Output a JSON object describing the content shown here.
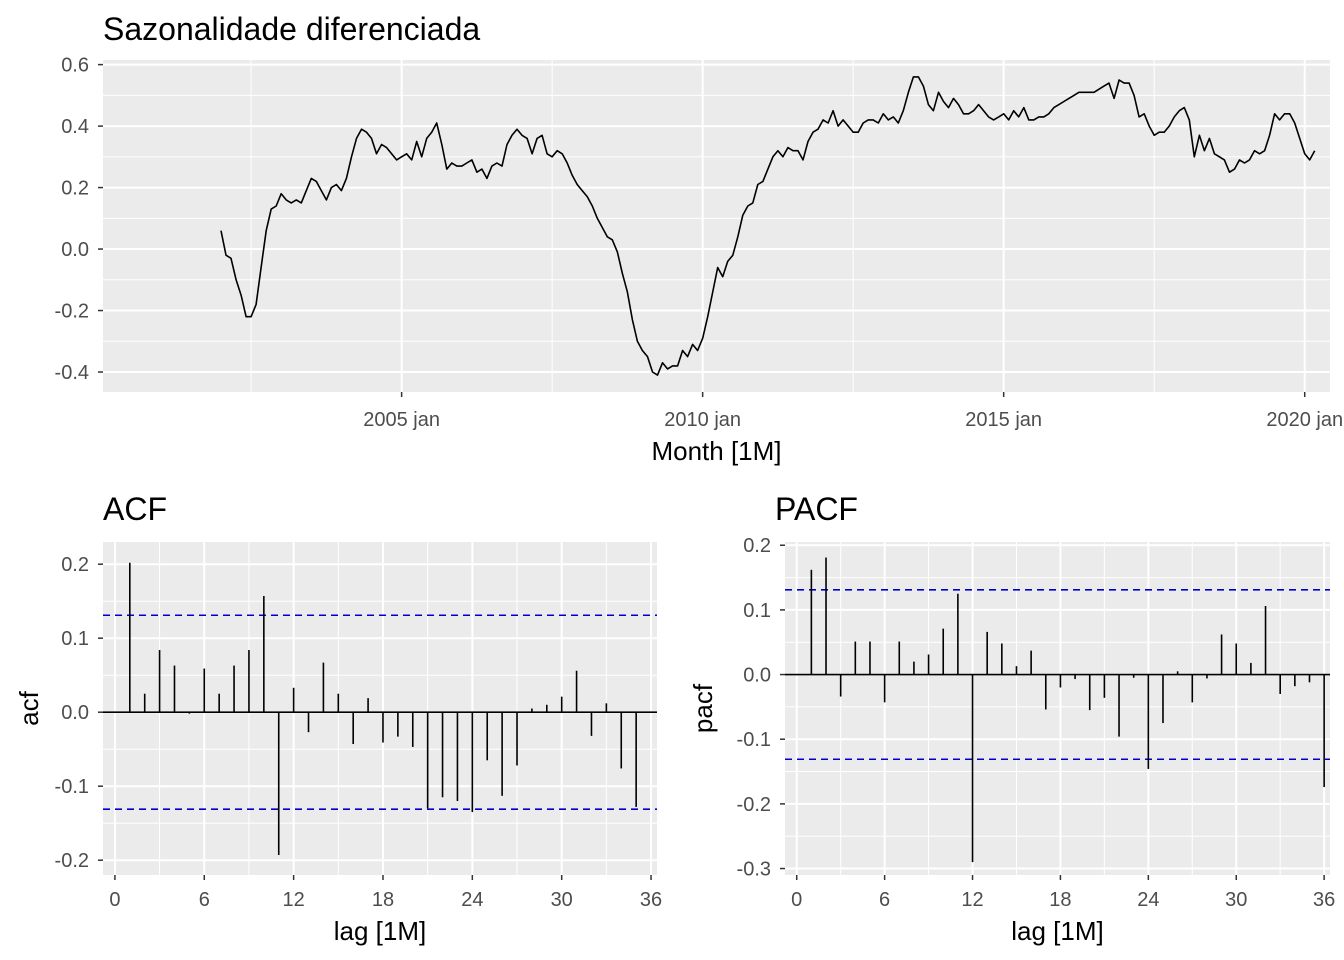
{
  "chart_data": [
    {
      "type": "line",
      "title": "Sazonalidade diferenciada",
      "xlabel": "Month [1M]",
      "ylabel": "",
      "xlim": [
        2000.04,
        2020.42
      ],
      "ylim": [
        -0.465,
        0.615
      ],
      "xticks": [
        {
          "value": 2005.0,
          "label": "2005 jan"
        },
        {
          "value": 2010.0,
          "label": "2010 jan"
        },
        {
          "value": 2015.0,
          "label": "2015 jan"
        },
        {
          "value": 2020.0,
          "label": "2020 jan"
        }
      ],
      "yticks": [
        {
          "value": 0.6,
          "label": "0.6"
        },
        {
          "value": 0.4,
          "label": "0.4"
        },
        {
          "value": 0.2,
          "label": "0.2"
        },
        {
          "value": 0.0,
          "label": "0.0"
        },
        {
          "value": -0.2,
          "label": "-0.2"
        },
        {
          "value": -0.4,
          "label": "-0.4"
        }
      ],
      "grid": true,
      "series": [
        {
          "x_start": 2002.0,
          "x_step": 0.0833333,
          "values": [
            0.06,
            -0.02,
            -0.03,
            -0.1,
            -0.15,
            -0.22,
            -0.22,
            -0.18,
            -0.06,
            0.06,
            0.13,
            0.14,
            0.18,
            0.16,
            0.15,
            0.16,
            0.15,
            0.19,
            0.23,
            0.22,
            0.19,
            0.16,
            0.2,
            0.21,
            0.19,
            0.23,
            0.3,
            0.36,
            0.39,
            0.38,
            0.36,
            0.31,
            0.34,
            0.33,
            0.31,
            0.29,
            0.3,
            0.31,
            0.29,
            0.35,
            0.3,
            0.36,
            0.38,
            0.41,
            0.34,
            0.26,
            0.28,
            0.27,
            0.27,
            0.28,
            0.29,
            0.25,
            0.26,
            0.23,
            0.27,
            0.28,
            0.27,
            0.34,
            0.37,
            0.39,
            0.37,
            0.36,
            0.31,
            0.36,
            0.37,
            0.31,
            0.3,
            0.32,
            0.31,
            0.28,
            0.24,
            0.21,
            0.19,
            0.17,
            0.14,
            0.1,
            0.07,
            0.04,
            0.03,
            -0.01,
            -0.08,
            -0.14,
            -0.23,
            -0.3,
            -0.33,
            -0.35,
            -0.4,
            -0.41,
            -0.37,
            -0.39,
            -0.38,
            -0.38,
            -0.33,
            -0.35,
            -0.31,
            -0.33,
            -0.29,
            -0.22,
            -0.14,
            -0.06,
            -0.09,
            -0.04,
            -0.02,
            0.04,
            0.11,
            0.14,
            0.15,
            0.21,
            0.22,
            0.26,
            0.3,
            0.32,
            0.3,
            0.33,
            0.32,
            0.32,
            0.29,
            0.35,
            0.38,
            0.39,
            0.42,
            0.41,
            0.45,
            0.4,
            0.42,
            0.4,
            0.38,
            0.38,
            0.41,
            0.42,
            0.42,
            0.41,
            0.44,
            0.42,
            0.43,
            0.41,
            0.45,
            0.51,
            0.56,
            0.56,
            0.53,
            0.47,
            0.45,
            0.51,
            0.48,
            0.46,
            0.49,
            0.47,
            0.44,
            0.44,
            0.45,
            0.47,
            0.45,
            0.43,
            0.42,
            0.43,
            0.44,
            0.42,
            0.45,
            0.43,
            0.46,
            0.42,
            0.42,
            0.43,
            0.43,
            0.44,
            0.46,
            0.47,
            0.48,
            0.49,
            0.5,
            0.51,
            0.51,
            0.51,
            0.51,
            0.52,
            0.53,
            0.54,
            0.49,
            0.55,
            0.54,
            0.54,
            0.5,
            0.43,
            0.44,
            0.4,
            0.37,
            0.38,
            0.38,
            0.4,
            0.43,
            0.45,
            0.46,
            0.42,
            0.3,
            0.37,
            0.32,
            0.36,
            0.31,
            0.3,
            0.29,
            0.25,
            0.26,
            0.29,
            0.28,
            0.29,
            0.32,
            0.31,
            0.32,
            0.37,
            0.44,
            0.42,
            0.44,
            0.44,
            0.41,
            0.36,
            0.31,
            0.29,
            0.32
          ]
        }
      ]
    },
    {
      "type": "bar",
      "title": "ACF",
      "xlabel": "lag [1M]",
      "ylabel": "acf",
      "xlim": [
        -0.8,
        36.4
      ],
      "ylim": [
        -0.22,
        0.23
      ],
      "xticks": [
        {
          "value": 0,
          "label": "0"
        },
        {
          "value": 6,
          "label": "6"
        },
        {
          "value": 12,
          "label": "12"
        },
        {
          "value": 18,
          "label": "18"
        },
        {
          "value": 24,
          "label": "24"
        },
        {
          "value": 30,
          "label": "30"
        },
        {
          "value": 36,
          "label": "36"
        }
      ],
      "yticks": [
        {
          "value": 0.2,
          "label": "0.2"
        },
        {
          "value": 0.1,
          "label": "0.1"
        },
        {
          "value": 0.0,
          "label": "0.0"
        },
        {
          "value": -0.1,
          "label": "-0.1"
        },
        {
          "value": -0.2,
          "label": "-0.2"
        }
      ],
      "confidence_bound": 0.131,
      "grid": true,
      "lags": [
        1,
        2,
        3,
        4,
        5,
        6,
        7,
        8,
        9,
        10,
        11,
        12,
        13,
        14,
        15,
        16,
        17,
        18,
        19,
        20,
        21,
        22,
        23,
        24,
        25,
        26,
        27,
        28,
        29,
        30,
        31,
        32,
        33,
        34,
        35
      ],
      "values": [
        0.202,
        0.025,
        0.084,
        0.063,
        -0.002,
        0.059,
        0.025,
        0.063,
        0.084,
        0.157,
        -0.193,
        0.033,
        -0.027,
        0.067,
        0.025,
        -0.043,
        0.019,
        -0.041,
        -0.033,
        -0.047,
        -0.13,
        -0.115,
        -0.12,
        -0.135,
        -0.065,
        -0.113,
        -0.072,
        0.005,
        0.01,
        0.021,
        0.056,
        -0.032,
        0.012,
        -0.076,
        -0.128
      ]
    },
    {
      "type": "bar",
      "title": "PACF",
      "xlabel": "lag [1M]",
      "ylabel": "pacf",
      "xlim": [
        -0.8,
        36.4
      ],
      "ylim": [
        -0.31,
        0.205
      ],
      "xticks": [
        {
          "value": 0,
          "label": "0"
        },
        {
          "value": 6,
          "label": "6"
        },
        {
          "value": 12,
          "label": "12"
        },
        {
          "value": 18,
          "label": "18"
        },
        {
          "value": 24,
          "label": "24"
        },
        {
          "value": 30,
          "label": "30"
        },
        {
          "value": 36,
          "label": "36"
        }
      ],
      "yticks": [
        {
          "value": 0.2,
          "label": "0.2"
        },
        {
          "value": 0.1,
          "label": "0.1"
        },
        {
          "value": 0.0,
          "label": "0.0"
        },
        {
          "value": -0.1,
          "label": "-0.1"
        },
        {
          "value": -0.2,
          "label": "-0.2"
        },
        {
          "value": -0.3,
          "label": "-0.3"
        }
      ],
      "confidence_bound": 0.131,
      "grid": true,
      "lags": [
        1,
        2,
        3,
        4,
        5,
        6,
        7,
        8,
        9,
        10,
        11,
        12,
        13,
        14,
        15,
        16,
        17,
        18,
        19,
        20,
        21,
        22,
        23,
        24,
        25,
        26,
        27,
        28,
        29,
        30,
        31,
        32,
        33,
        34,
        35,
        36
      ],
      "values": [
        0.162,
        0.181,
        -0.034,
        0.051,
        0.051,
        -0.043,
        0.051,
        0.02,
        0.031,
        0.071,
        0.125,
        -0.29,
        0.066,
        0.048,
        0.013,
        0.037,
        -0.054,
        -0.02,
        -0.007,
        -0.055,
        -0.036,
        -0.096,
        -0.005,
        -0.146,
        -0.075,
        0.005,
        -0.043,
        -0.006,
        0.062,
        0.048,
        0.018,
        0.106,
        -0.03,
        -0.018,
        -0.012,
        -0.174
      ]
    }
  ]
}
